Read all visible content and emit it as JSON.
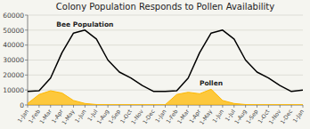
{
  "chart_data": {
    "type": "line",
    "title": "Colony Population Responds to Pollen Availability",
    "categories": [
      "1-Jan",
      "1-Feb",
      "1-Mar",
      "1-Apr",
      "1-May",
      "1-Jun",
      "1-Jul",
      "1-Aug",
      "1-Sep",
      "1-Oct",
      "1-Nov",
      "1-Dec",
      "1-Jan",
      "1-Feb",
      "1-Mar",
      "1-Apr",
      "1-May",
      "1-Jun",
      "1-Jul",
      "1-Aug",
      "1-Sep",
      "1-Oct",
      "1-Nov",
      "1-Dec",
      "1-Jan"
    ],
    "series": [
      {
        "name": "Pollen",
        "type": "area",
        "color": "#FFB800",
        "values": [
          1000,
          7000,
          9500,
          8000,
          3000,
          1000,
          300,
          200,
          200,
          200,
          200,
          200,
          200,
          7000,
          8500,
          7500,
          10500,
          3000,
          1000,
          300,
          200,
          200,
          200,
          200,
          200
        ]
      },
      {
        "name": "Bee Population",
        "type": "line",
        "color": "#000000",
        "values": [
          9000,
          9500,
          18000,
          35000,
          48000,
          50000,
          44000,
          30000,
          22000,
          18000,
          13000,
          9000,
          9000,
          9500,
          18000,
          35000,
          48000,
          50000,
          44000,
          30000,
          22000,
          18000,
          13000,
          9000,
          10000
        ]
      }
    ],
    "ylim": [
      0,
      60000
    ],
    "yticks": [
      0,
      10000,
      20000,
      30000,
      40000,
      50000,
      60000
    ],
    "grid": true
  }
}
